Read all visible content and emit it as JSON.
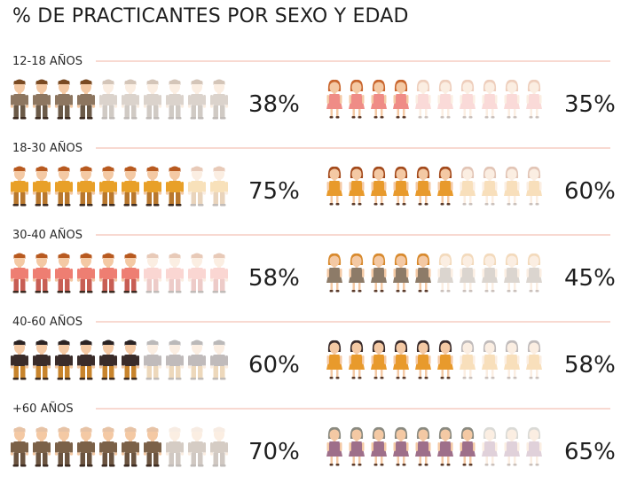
{
  "title": "% DE PRACTICANTES POR SEXO Y EDAD",
  "colors": {
    "rule": "#f1b3a3"
  },
  "chart_data": {
    "type": "pictogram",
    "title": "% DE PRACTICANTES POR SEXO Y EDAD",
    "icons_per_row": 10,
    "groups": [
      {
        "label": "12-18 AÑOS",
        "male": {
          "value": 38,
          "label": "38%",
          "colors": {
            "hair": "#7a4a22",
            "shirt": "#8d7660",
            "pants": "#6b5a48",
            "skin": "#f4c9a4"
          }
        },
        "female": {
          "value": 35,
          "label": "35%",
          "colors": {
            "hair": "#c9662e",
            "dress": "#ef8c86",
            "skin": "#f4c9a4"
          }
        }
      },
      {
        "label": "18-30 AÑOS",
        "male": {
          "value": 75,
          "label": "75%",
          "colors": {
            "hair": "#b85a20",
            "shirt": "#e8a028",
            "pants": "#b9782e",
            "skin": "#f4c9a4"
          }
        },
        "female": {
          "value": 60,
          "label": "60%",
          "colors": {
            "hair": "#a34a1c",
            "dress": "#e89a2c",
            "skin": "#f4c9a4"
          }
        }
      },
      {
        "label": "30-40 AÑOS",
        "male": {
          "value": 58,
          "label": "58%",
          "colors": {
            "hair": "#b85a20",
            "shirt": "#ee7e72",
            "pants": "#c85e54",
            "skin": "#f4c9a4"
          }
        },
        "female": {
          "value": 45,
          "label": "45%",
          "colors": {
            "hair": "#d88a2e",
            "dress": "#8d7b68",
            "skin": "#f4c9a4"
          }
        }
      },
      {
        "label": "40-60 AÑOS",
        "male": {
          "value": 60,
          "label": "60%",
          "colors": {
            "hair": "#2b2323",
            "shirt": "#3a2c2a",
            "pants": "#c8842c",
            "skin": "#f4c9a4"
          }
        },
        "female": {
          "value": 58,
          "label": "58%",
          "colors": {
            "hair": "#3a2c2c",
            "dress": "#e89a2c",
            "skin": "#f4c9a4"
          }
        }
      },
      {
        "label": "+60 AÑOS",
        "male": {
          "value": 70,
          "label": "70%",
          "colors": {
            "hair": "#e7c3a6",
            "shirt": "#7b6148",
            "pants": "#6b5440",
            "skin": "#f4c9a4"
          }
        },
        "female": {
          "value": 65,
          "label": "65%",
          "colors": {
            "hair": "#8a8a80",
            "dress": "#9e6f8a",
            "skin": "#f4c9a4"
          }
        }
      }
    ]
  }
}
